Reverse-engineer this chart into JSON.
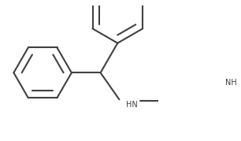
{
  "bg_color": "#ffffff",
  "line_color": "#404040",
  "text_color": "#404040",
  "line_width": 1.5,
  "fig_width": 3.06,
  "fig_height": 1.79,
  "dpi": 100,
  "font_size": 7.0
}
